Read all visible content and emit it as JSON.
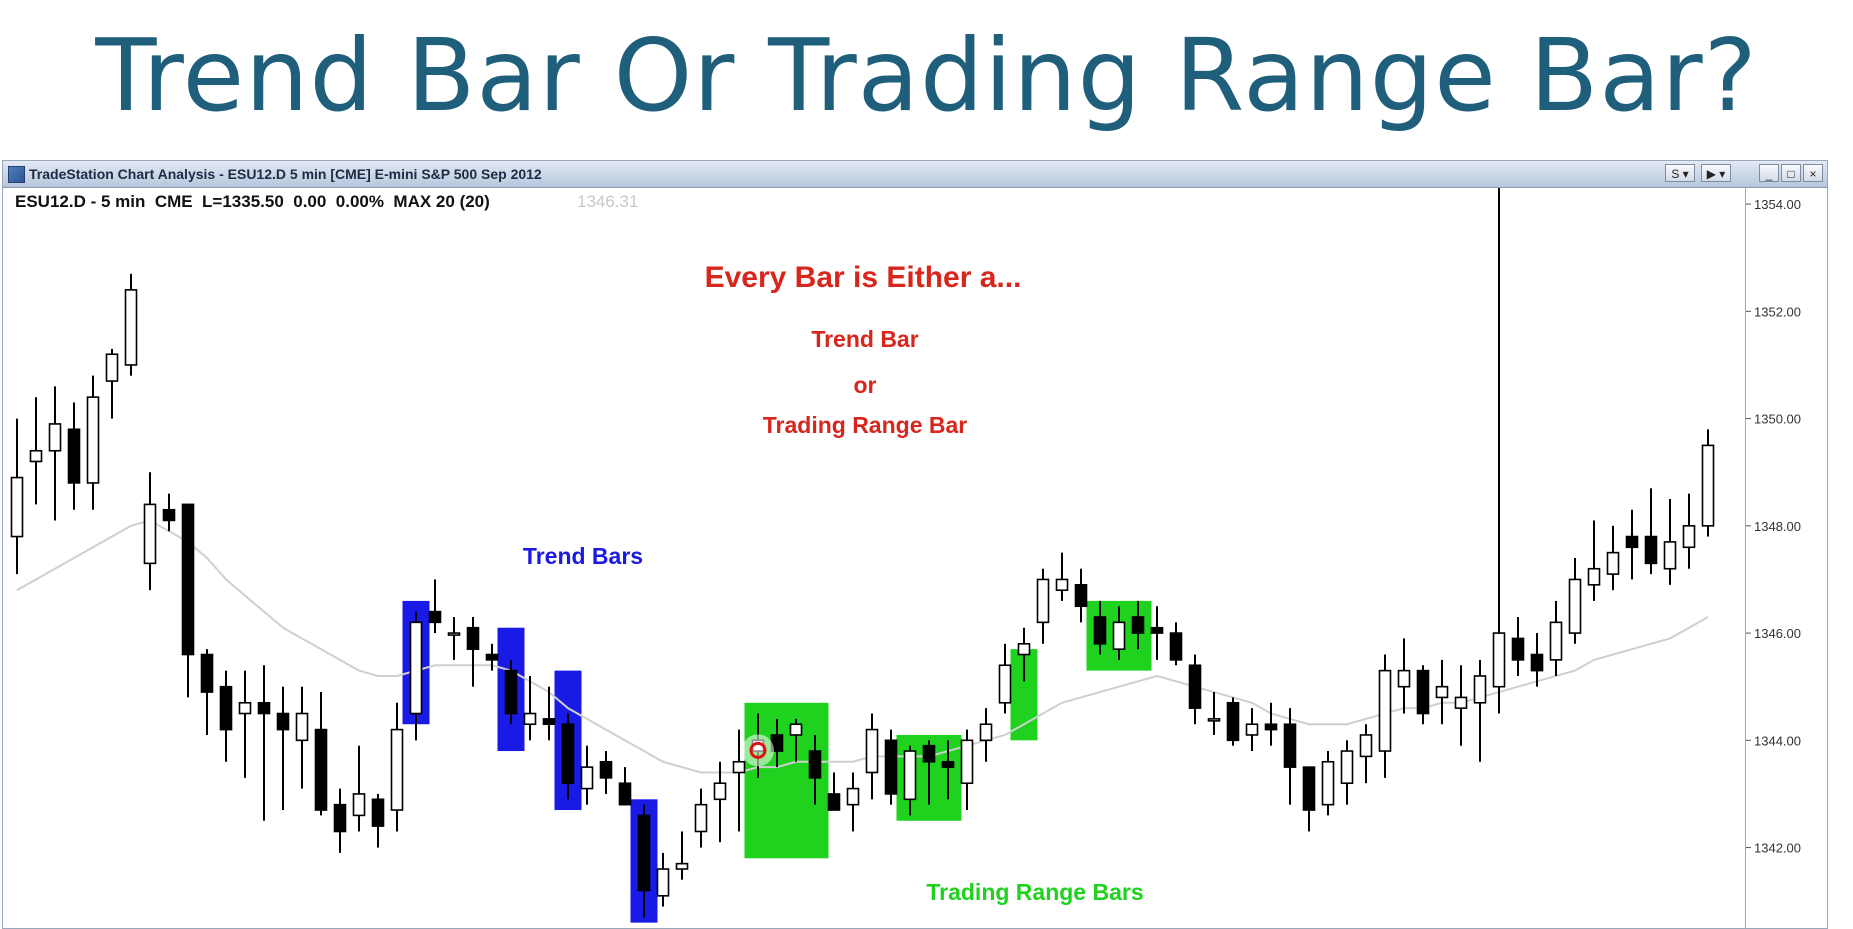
{
  "slide": {
    "title": "Trend Bar Or Trading Range Bar?"
  },
  "window": {
    "title": "TradeStation Chart Analysis - ESU12.D 5 min [CME] E-mini S&P 500 Sep 2012",
    "buttons": {
      "nav_left": "S ▾",
      "nav_right": "▶ ▾",
      "minimize": "_",
      "restore": "□",
      "close": "×"
    }
  },
  "chart_header": {
    "symbol_line": "ESU12.D - 5 min  CME  L=1335.50  0.00  0.00%  MAX 20 (20)",
    "ghost_value": "1346.31"
  },
  "annotations": {
    "heading": "Every Bar is Either a...",
    "option1": "Trend Bar",
    "or": "or",
    "option2": "Trading Range Bar",
    "trend_label": "Trend Bars",
    "range_label": "Trading Range Bars"
  },
  "colors": {
    "title": "#1f5f7c",
    "annotation_red": "#d8261c",
    "trend_blue": "#1a1ae6",
    "range_green": "#1ed21e",
    "moving_average": "#cfcfcf",
    "titlebar": "#b7c6dc"
  },
  "chart_data": {
    "type": "candlestick",
    "y_axis_ticks": [
      "1354.00",
      "1352.00",
      "1350.00",
      "1348.00",
      "1346.00",
      "1344.00",
      "1342.00"
    ],
    "ylim": [
      1340.5,
      1354.3
    ],
    "bars": [
      {
        "o": 1347.8,
        "h": 1350.0,
        "l": 1347.1,
        "c": 1348.9
      },
      {
        "o": 1349.2,
        "h": 1350.4,
        "l": 1348.4,
        "c": 1349.4
      },
      {
        "o": 1349.4,
        "h": 1350.6,
        "l": 1348.1,
        "c": 1349.9
      },
      {
        "o": 1349.8,
        "h": 1350.3,
        "l": 1348.3,
        "c": 1348.8
      },
      {
        "o": 1348.8,
        "h": 1350.8,
        "l": 1348.3,
        "c": 1350.4
      },
      {
        "o": 1350.7,
        "h": 1351.3,
        "l": 1350.0,
        "c": 1351.2
      },
      {
        "o": 1351.0,
        "h": 1352.7,
        "l": 1350.8,
        "c": 1352.4
      },
      {
        "o": 1347.3,
        "h": 1349.0,
        "l": 1346.8,
        "c": 1348.4
      },
      {
        "o": 1348.3,
        "h": 1348.6,
        "l": 1347.9,
        "c": 1348.1
      },
      {
        "o": 1348.4,
        "h": 1348.4,
        "l": 1344.8,
        "c": 1345.6
      },
      {
        "o": 1345.6,
        "h": 1345.7,
        "l": 1344.1,
        "c": 1344.9
      },
      {
        "o": 1345.0,
        "h": 1345.3,
        "l": 1343.6,
        "c": 1344.2
      },
      {
        "o": 1344.5,
        "h": 1345.3,
        "l": 1343.3,
        "c": 1344.7
      },
      {
        "o": 1344.7,
        "h": 1345.4,
        "l": 1342.5,
        "c": 1344.5
      },
      {
        "o": 1344.5,
        "h": 1345.0,
        "l": 1342.7,
        "c": 1344.2
      },
      {
        "o": 1344.0,
        "h": 1345.0,
        "l": 1343.1,
        "c": 1344.5
      },
      {
        "o": 1344.2,
        "h": 1344.9,
        "l": 1342.6,
        "c": 1342.7
      },
      {
        "o": 1342.8,
        "h": 1343.1,
        "l": 1341.9,
        "c": 1342.3
      },
      {
        "o": 1342.6,
        "h": 1343.9,
        "l": 1342.3,
        "c": 1343.0
      },
      {
        "o": 1342.9,
        "h": 1343.0,
        "l": 1342.0,
        "c": 1342.4
      },
      {
        "o": 1342.7,
        "h": 1344.7,
        "l": 1342.3,
        "c": 1344.2
      },
      {
        "o": 1344.5,
        "h": 1346.4,
        "l": 1344.0,
        "c": 1346.2
      },
      {
        "o": 1346.4,
        "h": 1347.0,
        "l": 1346.0,
        "c": 1346.2
      },
      {
        "o": 1346.0,
        "h": 1346.3,
        "l": 1345.5,
        "c": 1346.0
      },
      {
        "o": 1346.1,
        "h": 1346.3,
        "l": 1345.0,
        "c": 1345.7
      },
      {
        "o": 1345.6,
        "h": 1345.8,
        "l": 1345.3,
        "c": 1345.5
      },
      {
        "o": 1345.3,
        "h": 1345.5,
        "l": 1344.3,
        "c": 1344.5
      },
      {
        "o": 1344.3,
        "h": 1345.2,
        "l": 1344.0,
        "c": 1344.5
      },
      {
        "o": 1344.4,
        "h": 1345.0,
        "l": 1344.0,
        "c": 1344.3
      },
      {
        "o": 1344.3,
        "h": 1344.5,
        "l": 1342.9,
        "c": 1343.2
      },
      {
        "o": 1343.1,
        "h": 1343.9,
        "l": 1342.8,
        "c": 1343.5
      },
      {
        "o": 1343.6,
        "h": 1343.8,
        "l": 1343.0,
        "c": 1343.3
      },
      {
        "o": 1343.2,
        "h": 1343.5,
        "l": 1342.8,
        "c": 1342.8
      },
      {
        "o": 1342.6,
        "h": 1342.8,
        "l": 1340.7,
        "c": 1341.2
      },
      {
        "o": 1341.1,
        "h": 1341.9,
        "l": 1340.9,
        "c": 1341.6
      },
      {
        "o": 1341.6,
        "h": 1342.3,
        "l": 1341.4,
        "c": 1341.7
      },
      {
        "o": 1342.3,
        "h": 1343.1,
        "l": 1342.0,
        "c": 1342.8
      },
      {
        "o": 1342.9,
        "h": 1343.6,
        "l": 1342.1,
        "c": 1343.2
      },
      {
        "o": 1343.4,
        "h": 1344.2,
        "l": 1342.3,
        "c": 1343.6
      },
      {
        "o": 1343.8,
        "h": 1344.5,
        "l": 1343.3,
        "c": 1344.0
      },
      {
        "o": 1344.1,
        "h": 1344.4,
        "l": 1343.5,
        "c": 1343.8
      },
      {
        "o": 1344.1,
        "h": 1344.4,
        "l": 1343.6,
        "c": 1344.3
      },
      {
        "o": 1343.8,
        "h": 1344.1,
        "l": 1342.8,
        "c": 1343.3
      },
      {
        "o": 1343.0,
        "h": 1343.4,
        "l": 1342.8,
        "c": 1342.7
      },
      {
        "o": 1342.8,
        "h": 1343.4,
        "l": 1342.3,
        "c": 1343.1
      },
      {
        "o": 1343.4,
        "h": 1344.5,
        "l": 1342.9,
        "c": 1344.2
      },
      {
        "o": 1344.0,
        "h": 1344.2,
        "l": 1342.8,
        "c": 1343.0
      },
      {
        "o": 1342.9,
        "h": 1343.9,
        "l": 1342.6,
        "c": 1343.8
      },
      {
        "o": 1343.9,
        "h": 1344.0,
        "l": 1342.8,
        "c": 1343.6
      },
      {
        "o": 1343.6,
        "h": 1344.0,
        "l": 1342.9,
        "c": 1343.5
      },
      {
        "o": 1343.2,
        "h": 1344.2,
        "l": 1342.7,
        "c": 1344.0
      },
      {
        "o": 1344.0,
        "h": 1344.6,
        "l": 1343.6,
        "c": 1344.3
      },
      {
        "o": 1344.7,
        "h": 1345.8,
        "l": 1344.5,
        "c": 1345.4
      },
      {
        "o": 1345.6,
        "h": 1346.1,
        "l": 1345.1,
        "c": 1345.8
      },
      {
        "o": 1346.2,
        "h": 1347.2,
        "l": 1345.8,
        "c": 1347.0
      },
      {
        "o": 1346.8,
        "h": 1347.5,
        "l": 1346.6,
        "c": 1347.0
      },
      {
        "o": 1346.9,
        "h": 1347.2,
        "l": 1346.2,
        "c": 1346.5
      },
      {
        "o": 1346.3,
        "h": 1346.6,
        "l": 1345.6,
        "c": 1345.8
      },
      {
        "o": 1345.7,
        "h": 1346.5,
        "l": 1345.5,
        "c": 1346.2
      },
      {
        "o": 1346.3,
        "h": 1346.6,
        "l": 1345.7,
        "c": 1346.0
      },
      {
        "o": 1346.1,
        "h": 1346.5,
        "l": 1345.5,
        "c": 1346.0
      },
      {
        "o": 1346.0,
        "h": 1346.2,
        "l": 1345.4,
        "c": 1345.5
      },
      {
        "o": 1345.4,
        "h": 1345.6,
        "l": 1344.3,
        "c": 1344.6
      },
      {
        "o": 1344.4,
        "h": 1344.9,
        "l": 1344.1,
        "c": 1344.4
      },
      {
        "o": 1344.7,
        "h": 1344.8,
        "l": 1343.9,
        "c": 1344.0
      },
      {
        "o": 1344.1,
        "h": 1344.6,
        "l": 1343.8,
        "c": 1344.3
      },
      {
        "o": 1344.3,
        "h": 1344.7,
        "l": 1343.9,
        "c": 1344.2
      },
      {
        "o": 1344.3,
        "h": 1344.6,
        "l": 1342.8,
        "c": 1343.5
      },
      {
        "o": 1343.5,
        "h": 1343.5,
        "l": 1342.3,
        "c": 1342.7
      },
      {
        "o": 1342.8,
        "h": 1343.8,
        "l": 1342.6,
        "c": 1343.6
      },
      {
        "o": 1343.2,
        "h": 1344.0,
        "l": 1342.8,
        "c": 1343.8
      },
      {
        "o": 1343.7,
        "h": 1344.3,
        "l": 1343.2,
        "c": 1344.1
      },
      {
        "o": 1343.8,
        "h": 1345.6,
        "l": 1343.3,
        "c": 1345.3
      },
      {
        "o": 1345.0,
        "h": 1345.9,
        "l": 1344.5,
        "c": 1345.3
      },
      {
        "o": 1345.3,
        "h": 1345.4,
        "l": 1344.3,
        "c": 1344.5
      },
      {
        "o": 1344.8,
        "h": 1345.5,
        "l": 1344.3,
        "c": 1345.0
      },
      {
        "o": 1344.6,
        "h": 1345.4,
        "l": 1343.9,
        "c": 1344.8
      },
      {
        "o": 1344.7,
        "h": 1345.5,
        "l": 1343.6,
        "c": 1345.2
      },
      {
        "o": 1345.0,
        "h": 1446.0,
        "l": 1344.5,
        "c": 1346.0
      },
      {
        "o": 1345.9,
        "h": 1346.3,
        "l": 1345.2,
        "c": 1345.5
      },
      {
        "o": 1345.6,
        "h": 1346.0,
        "l": 1345.0,
        "c": 1345.3
      },
      {
        "o": 1345.5,
        "h": 1346.6,
        "l": 1345.2,
        "c": 1346.2
      },
      {
        "o": 1346.0,
        "h": 1347.4,
        "l": 1345.8,
        "c": 1347.0
      },
      {
        "o": 1346.9,
        "h": 1348.1,
        "l": 1346.6,
        "c": 1347.2
      },
      {
        "o": 1347.1,
        "h": 1348.0,
        "l": 1346.8,
        "c": 1347.5
      },
      {
        "o": 1347.8,
        "h": 1348.3,
        "l": 1347.0,
        "c": 1347.6
      },
      {
        "o": 1347.8,
        "h": 1348.7,
        "l": 1347.1,
        "c": 1347.3
      },
      {
        "o": 1347.2,
        "h": 1348.5,
        "l": 1346.9,
        "c": 1347.7
      },
      {
        "o": 1347.6,
        "h": 1348.6,
        "l": 1347.2,
        "c": 1348.0
      },
      {
        "o": 1348.0,
        "h": 1349.8,
        "l": 1347.8,
        "c": 1349.5
      }
    ],
    "moving_average": [
      1346.8,
      1347.0,
      1347.2,
      1347.4,
      1347.6,
      1347.8,
      1348.0,
      1348.1,
      1347.9,
      1347.7,
      1347.4,
      1347.0,
      1346.7,
      1346.4,
      1346.1,
      1345.9,
      1345.7,
      1345.5,
      1345.3,
      1345.2,
      1345.2,
      1345.3,
      1345.4,
      1345.4,
      1345.4,
      1345.4,
      1345.3,
      1345.1,
      1344.9,
      1344.6,
      1344.4,
      1344.2,
      1344.0,
      1343.8,
      1343.6,
      1343.5,
      1343.4,
      1343.4,
      1343.4,
      1343.5,
      1343.5,
      1343.6,
      1343.6,
      1343.6,
      1343.6,
      1343.7,
      1343.7,
      1343.7,
      1343.7,
      1343.8,
      1343.9,
      1344.0,
      1344.1,
      1344.3,
      1344.5,
      1344.7,
      1344.8,
      1344.9,
      1345.0,
      1345.1,
      1345.2,
      1345.1,
      1345.0,
      1344.9,
      1344.8,
      1344.7,
      1344.5,
      1344.4,
      1344.3,
      1344.3,
      1344.3,
      1344.4,
      1344.5,
      1344.6,
      1344.6,
      1344.7,
      1344.7,
      1344.8,
      1344.9,
      1345.0,
      1345.1,
      1345.2,
      1345.3,
      1345.5,
      1345.6,
      1345.7,
      1345.8,
      1345.9,
      1346.1,
      1346.3
    ],
    "trend_bar_highlights": [
      {
        "from": 21,
        "to": 21,
        "top": 1346.6,
        "bottom": 1344.3
      },
      {
        "from": 26,
        "to": 26,
        "top": 1346.1,
        "bottom": 1343.8
      },
      {
        "from": 29,
        "to": 29,
        "top": 1345.3,
        "bottom": 1342.7
      },
      {
        "from": 33,
        "to": 33,
        "top": 1342.9,
        "bottom": 1340.6
      }
    ],
    "range_bar_highlights": [
      {
        "from": 39,
        "to": 42,
        "top": 1344.7,
        "bottom": 1341.8
      },
      {
        "from": 47,
        "to": 49,
        "top": 1344.1,
        "bottom": 1342.5
      },
      {
        "from": 53,
        "to": 53,
        "top": 1345.7,
        "bottom": 1344.0
      },
      {
        "from": 57,
        "to": 59,
        "top": 1346.6,
        "bottom": 1345.3
      }
    ],
    "marked_bar": 39
  }
}
